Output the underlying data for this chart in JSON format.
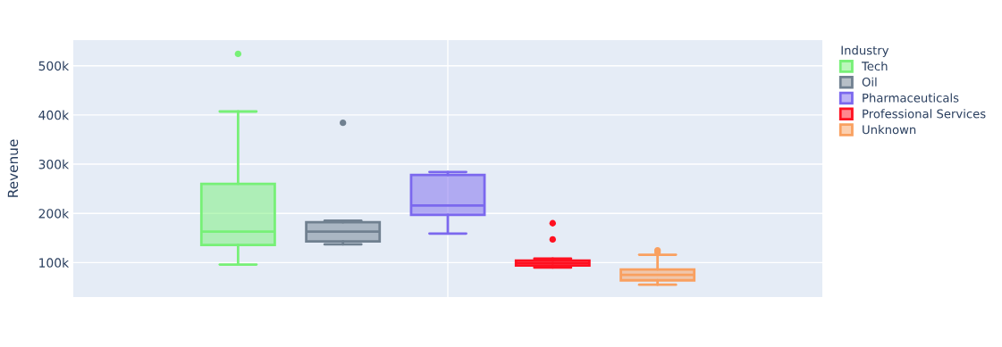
{
  "chart_data": {
    "type": "box",
    "ylabel": "Revenue",
    "legend_title": "Industry",
    "legend": "top right",
    "grid": true,
    "categories": [
      null
    ],
    "ylim": [
      30000,
      552000
    ],
    "yticks": [
      {
        "value": 100000,
        "label": "100k"
      },
      {
        "value": 200000,
        "label": "200k"
      },
      {
        "value": 300000,
        "label": "300k"
      },
      {
        "value": 400000,
        "label": "400k"
      },
      {
        "value": 500000,
        "label": "500k"
      }
    ],
    "series": [
      {
        "name": "Tech",
        "color": "#77f077",
        "boxes": [
          {
            "low": 96000,
            "q1": 136000,
            "median": 163000,
            "q3": 260000,
            "high": 407000,
            "outliers": [
              524000
            ]
          }
        ]
      },
      {
        "name": "Oil",
        "color": "#708090",
        "boxes": [
          {
            "low": 137000,
            "q1": 143000,
            "median": 163000,
            "q3": 182000,
            "high": 185000,
            "outliers": [
              384000
            ]
          }
        ]
      },
      {
        "name": "Pharmaceuticals",
        "color": "#7b68ee",
        "boxes": [
          {
            "low": 159000,
            "q1": 197000,
            "median": 216000,
            "q3": 278000,
            "high": 284000
          }
        ]
      },
      {
        "name": "Professional Services",
        "color": "#ff1020",
        "boxes": [
          {
            "low": 90000,
            "q1": 94000,
            "median": 99000,
            "q3": 104000,
            "high": 108000,
            "outliers": [
              147000,
              180000
            ]
          }
        ]
      },
      {
        "name": "Unknown",
        "color": "#f9a060",
        "boxes": [
          {
            "low": 55000,
            "q1": 64000,
            "median": 75000,
            "q3": 86000,
            "high": 116000,
            "outliers": [
              121000,
              125000
            ]
          }
        ]
      }
    ]
  }
}
